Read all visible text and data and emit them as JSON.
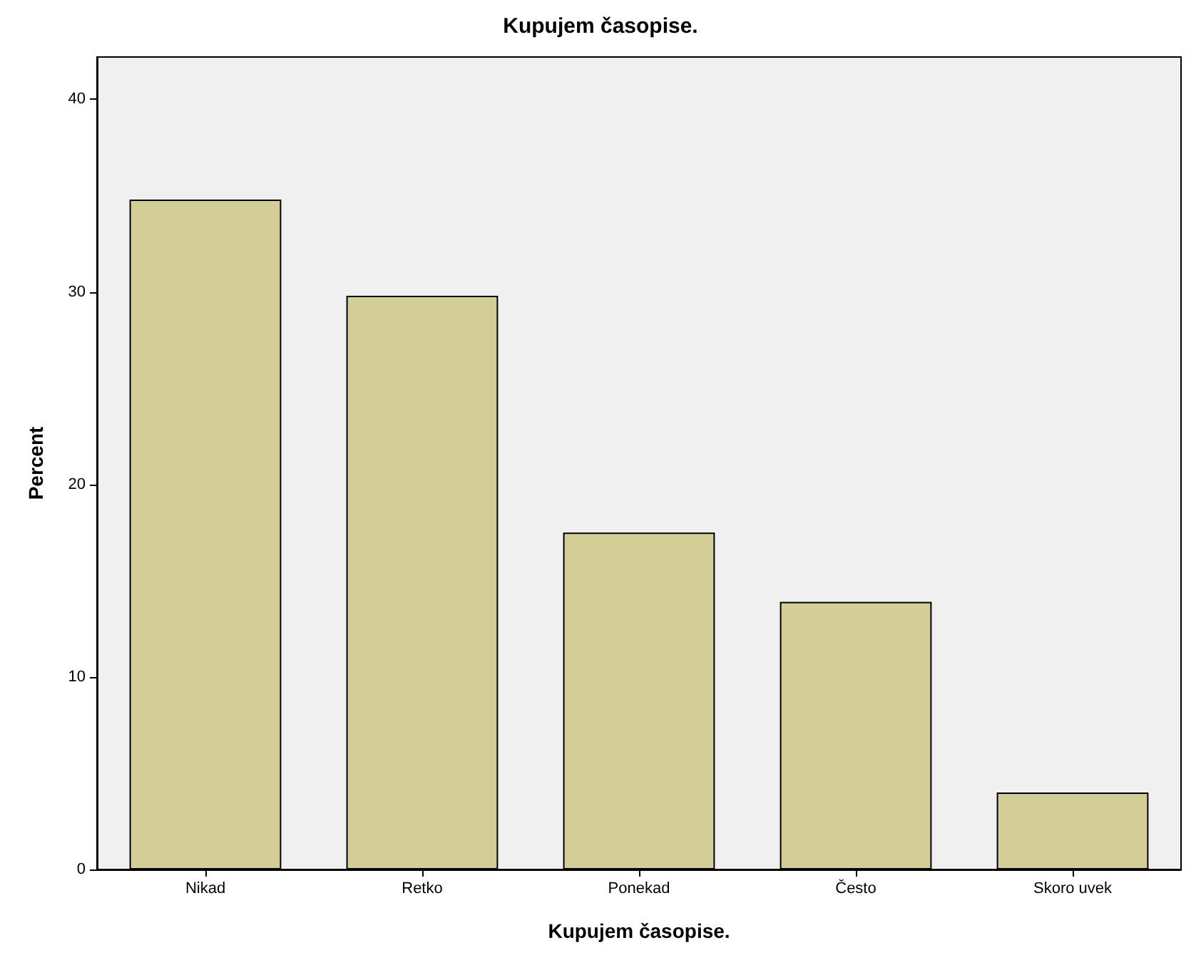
{
  "chart_data": {
    "type": "bar",
    "title": "Kupujem časopise.",
    "xlabel": "Kupujem časopise.",
    "ylabel": "Percent",
    "categories": [
      "Nikad",
      "Retko",
      "Ponekad",
      "Često",
      "Skoro uvek"
    ],
    "values": [
      34.8,
      29.8,
      17.5,
      13.9,
      4.0
    ],
    "color": "#d3ce97",
    "ylim": [
      0,
      42.2
    ],
    "yticks": [
      0,
      10,
      20,
      30,
      40
    ],
    "grid": false
  }
}
